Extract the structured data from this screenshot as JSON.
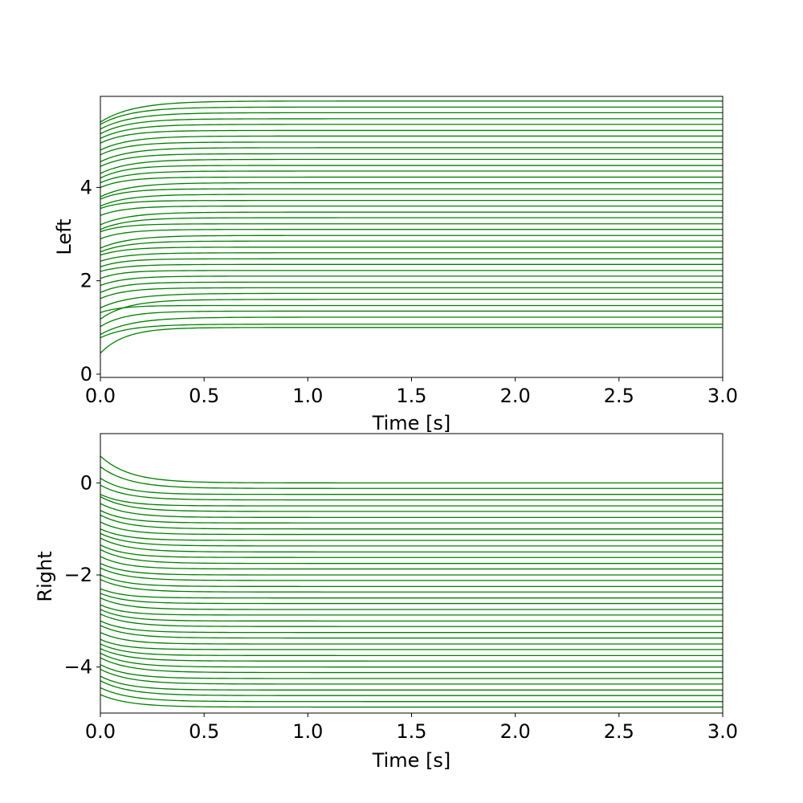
{
  "chart_data": [
    {
      "type": "line",
      "xlabel": "Time [s]",
      "ylabel": "Left",
      "xlim": [
        0.0,
        3.0
      ],
      "ylim": [
        -0.07,
        5.95
      ],
      "xticks": [
        "0.0",
        "0.5",
        "1.0",
        "1.5",
        "2.0",
        "2.5",
        "3.0"
      ],
      "yticks": [
        "0",
        "2",
        "4"
      ],
      "line_color": "#008000",
      "model": "exponential approach: y(t) = final + (start - final) * exp(-t / tau)",
      "series": [
        {
          "start": 0.45,
          "final": 1.0,
          "tau": 0.12
        },
        {
          "start": 0.78,
          "final": 1.07,
          "tau": 0.14
        },
        {
          "start": 0.85,
          "final": 1.22,
          "tau": 0.15
        },
        {
          "start": 1.02,
          "final": 1.35,
          "tau": 0.12
        },
        {
          "start": 1.32,
          "final": 1.47,
          "tau": 0.1
        },
        {
          "start": 1.18,
          "final": 1.6,
          "tau": 0.13
        },
        {
          "start": 1.42,
          "final": 1.73,
          "tau": 0.15
        },
        {
          "start": 1.62,
          "final": 1.85,
          "tau": 0.12
        },
        {
          "start": 1.75,
          "final": 1.97,
          "tau": 0.11
        },
        {
          "start": 1.9,
          "final": 2.1,
          "tau": 0.12
        },
        {
          "start": 2.05,
          "final": 2.22,
          "tau": 0.1
        },
        {
          "start": 2.2,
          "final": 2.35,
          "tau": 0.12
        },
        {
          "start": 2.3,
          "final": 2.47,
          "tau": 0.11
        },
        {
          "start": 2.42,
          "final": 2.6,
          "tau": 0.13
        },
        {
          "start": 2.55,
          "final": 2.72,
          "tau": 0.12
        },
        {
          "start": 2.62,
          "final": 2.85,
          "tau": 0.13
        },
        {
          "start": 2.7,
          "final": 2.97,
          "tau": 0.14
        },
        {
          "start": 2.9,
          "final": 3.1,
          "tau": 0.12
        },
        {
          "start": 3.05,
          "final": 3.22,
          "tau": 0.11
        },
        {
          "start": 3.1,
          "final": 3.35,
          "tau": 0.13
        },
        {
          "start": 3.2,
          "final": 3.47,
          "tau": 0.14
        },
        {
          "start": 3.4,
          "final": 3.6,
          "tau": 0.12
        },
        {
          "start": 3.55,
          "final": 3.72,
          "tau": 0.11
        },
        {
          "start": 3.6,
          "final": 3.85,
          "tau": 0.13
        },
        {
          "start": 3.75,
          "final": 3.97,
          "tau": 0.12
        },
        {
          "start": 3.8,
          "final": 4.1,
          "tau": 0.14
        },
        {
          "start": 4.0,
          "final": 4.22,
          "tau": 0.12
        },
        {
          "start": 4.1,
          "final": 4.35,
          "tau": 0.13
        },
        {
          "start": 4.2,
          "final": 4.47,
          "tau": 0.12
        },
        {
          "start": 4.3,
          "final": 4.6,
          "tau": 0.14
        },
        {
          "start": 4.45,
          "final": 4.72,
          "tau": 0.13
        },
        {
          "start": 4.55,
          "final": 4.85,
          "tau": 0.14
        },
        {
          "start": 4.7,
          "final": 4.97,
          "tau": 0.13
        },
        {
          "start": 4.8,
          "final": 5.1,
          "tau": 0.14
        },
        {
          "start": 4.95,
          "final": 5.22,
          "tau": 0.13
        },
        {
          "start": 5.05,
          "final": 5.35,
          "tau": 0.14
        },
        {
          "start": 5.15,
          "final": 5.47,
          "tau": 0.14
        },
        {
          "start": 5.25,
          "final": 5.6,
          "tau": 0.15
        },
        {
          "start": 5.35,
          "final": 5.72,
          "tau": 0.15
        },
        {
          "start": 5.4,
          "final": 5.85,
          "tau": 0.16
        }
      ]
    },
    {
      "type": "line",
      "xlabel": "Time [s]",
      "ylabel": "Right",
      "xlim": [
        0.0,
        3.0
      ],
      "ylim": [
        -5.0,
        1.07
      ],
      "xticks": [
        "0.0",
        "0.5",
        "1.0",
        "1.5",
        "2.0",
        "2.5",
        "3.0"
      ],
      "yticks": [
        "0",
        "−2",
        "−4"
      ],
      "line_color": "#008000",
      "model": "exponential approach: y(t) = final + (start - final) * exp(-t / tau)",
      "series": [
        {
          "start": 0.58,
          "final": 0.0,
          "tau": 0.14
        },
        {
          "start": 0.35,
          "final": -0.12,
          "tau": 0.14
        },
        {
          "start": 0.1,
          "final": -0.25,
          "tau": 0.12
        },
        {
          "start": -0.05,
          "final": -0.37,
          "tau": 0.13
        },
        {
          "start": -0.25,
          "final": -0.5,
          "tau": 0.12
        },
        {
          "start": -0.3,
          "final": -0.62,
          "tau": 0.13
        },
        {
          "start": -0.45,
          "final": -0.75,
          "tau": 0.13
        },
        {
          "start": -0.6,
          "final": -0.87,
          "tau": 0.12
        },
        {
          "start": -0.7,
          "final": -1.0,
          "tau": 0.13
        },
        {
          "start": -0.85,
          "final": -1.12,
          "tau": 0.12
        },
        {
          "start": -1.0,
          "final": -1.25,
          "tau": 0.12
        },
        {
          "start": -1.1,
          "final": -1.37,
          "tau": 0.13
        },
        {
          "start": -1.2,
          "final": -1.5,
          "tau": 0.13
        },
        {
          "start": -1.35,
          "final": -1.62,
          "tau": 0.12
        },
        {
          "start": -1.45,
          "final": -1.75,
          "tau": 0.13
        },
        {
          "start": -1.6,
          "final": -1.87,
          "tau": 0.12
        },
        {
          "start": -1.75,
          "final": -2.0,
          "tau": 0.12
        },
        {
          "start": -1.85,
          "final": -2.12,
          "tau": 0.13
        },
        {
          "start": -2.0,
          "final": -2.25,
          "tau": 0.12
        },
        {
          "start": -2.1,
          "final": -2.37,
          "tau": 0.13
        },
        {
          "start": -2.3,
          "final": -2.5,
          "tau": 0.11
        },
        {
          "start": -2.4,
          "final": -2.62,
          "tau": 0.12
        },
        {
          "start": -2.5,
          "final": -2.75,
          "tau": 0.12
        },
        {
          "start": -2.65,
          "final": -2.87,
          "tau": 0.11
        },
        {
          "start": -2.75,
          "final": -3.0,
          "tau": 0.12
        },
        {
          "start": -2.85,
          "final": -3.12,
          "tau": 0.13
        },
        {
          "start": -3.0,
          "final": -3.25,
          "tau": 0.12
        },
        {
          "start": -3.1,
          "final": -3.37,
          "tau": 0.13
        },
        {
          "start": -3.25,
          "final": -3.5,
          "tau": 0.12
        },
        {
          "start": -3.4,
          "final": -3.62,
          "tau": 0.11
        },
        {
          "start": -3.5,
          "final": -3.75,
          "tau": 0.12
        },
        {
          "start": -3.6,
          "final": -3.87,
          "tau": 0.13
        },
        {
          "start": -3.7,
          "final": -4.0,
          "tau": 0.13
        },
        {
          "start": -3.8,
          "final": -4.12,
          "tau": 0.14
        },
        {
          "start": -3.95,
          "final": -4.25,
          "tau": 0.13
        },
        {
          "start": -4.05,
          "final": -4.37,
          "tau": 0.14
        },
        {
          "start": -4.2,
          "final": -4.5,
          "tau": 0.13
        },
        {
          "start": -4.3,
          "final": -4.62,
          "tau": 0.14
        },
        {
          "start": -4.45,
          "final": -4.75,
          "tau": 0.14
        },
        {
          "start": -4.6,
          "final": -4.87,
          "tau": 0.14
        }
      ]
    }
  ]
}
